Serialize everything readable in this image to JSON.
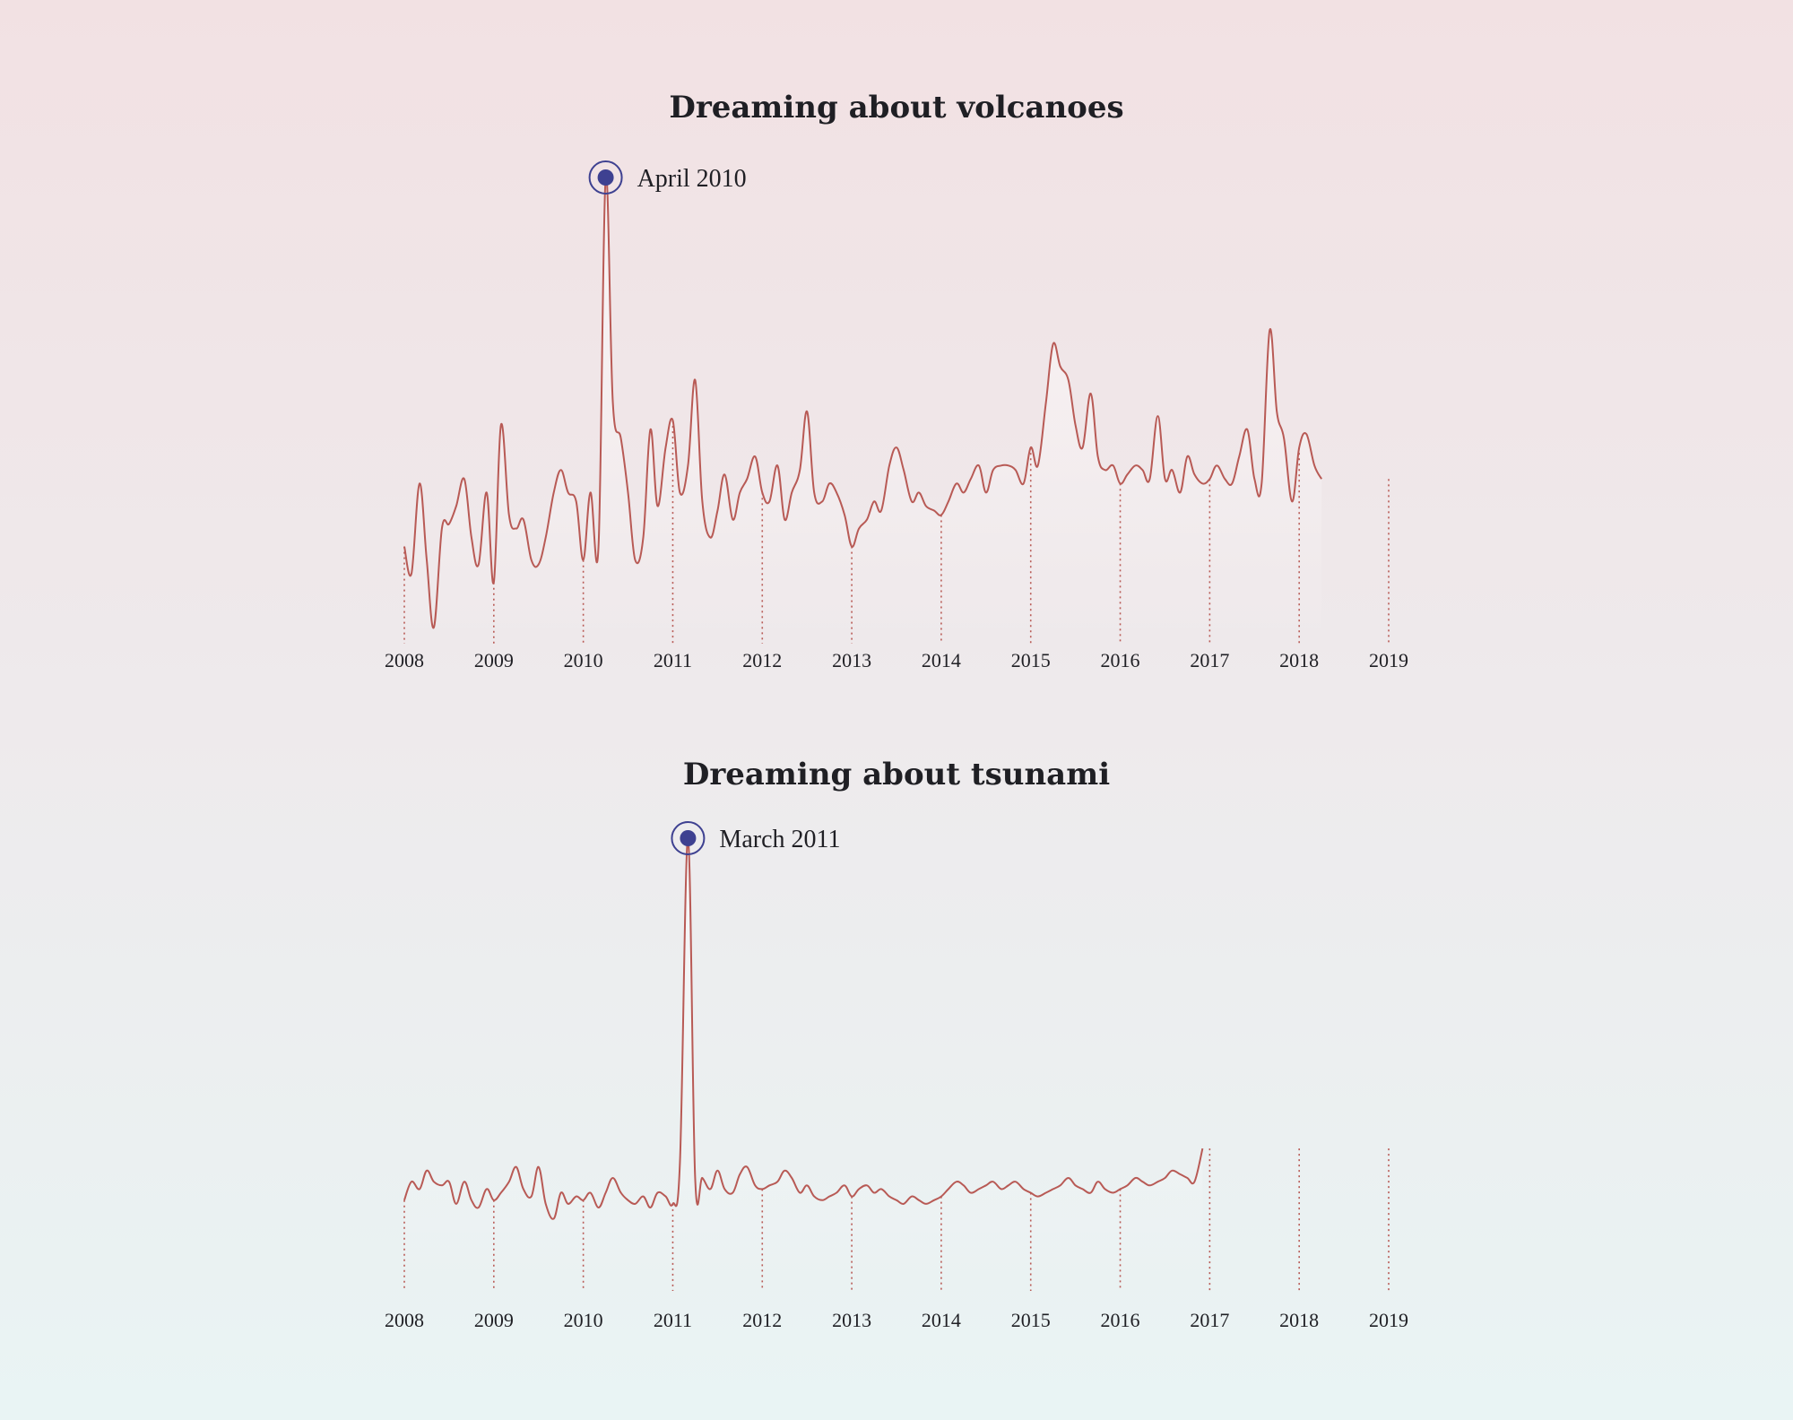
{
  "colors": {
    "line": "#b85a55",
    "tick_line": "#b85a55",
    "marker": "#3e4191",
    "area_top": "#ffffff"
  },
  "chart_data": [
    {
      "type": "line",
      "title": "Dreaming about volcanoes",
      "xlabel": "",
      "ylabel": "",
      "xlim": [
        2008,
        2019
      ],
      "ylim": [
        0,
        100
      ],
      "grid": false,
      "legend": "none",
      "x_ticks": [
        "2008",
        "2009",
        "2010",
        "2011",
        "2012",
        "2013",
        "2014",
        "2015",
        "2016",
        "2017",
        "2018",
        "2019"
      ],
      "annotation": {
        "label": "April 2010",
        "x": 2010.25,
        "y": 100
      },
      "series": [
        {
          "points": [
            [
              2008.0,
              18
            ],
            [
              2008.08,
              12
            ],
            [
              2008.17,
              32
            ],
            [
              2008.25,
              15
            ],
            [
              2008.33,
              0
            ],
            [
              2008.42,
              22
            ],
            [
              2008.5,
              23
            ],
            [
              2008.58,
              27
            ],
            [
              2008.67,
              33
            ],
            [
              2008.75,
              20
            ],
            [
              2008.83,
              14
            ],
            [
              2008.92,
              30
            ],
            [
              2009.0,
              10
            ],
            [
              2009.08,
              45
            ],
            [
              2009.17,
              25
            ],
            [
              2009.25,
              22
            ],
            [
              2009.33,
              24
            ],
            [
              2009.42,
              15
            ],
            [
              2009.5,
              14
            ],
            [
              2009.58,
              20
            ],
            [
              2009.67,
              30
            ],
            [
              2009.75,
              35
            ],
            [
              2009.83,
              30
            ],
            [
              2009.92,
              28
            ],
            [
              2010.0,
              15
            ],
            [
              2010.08,
              30
            ],
            [
              2010.17,
              18
            ],
            [
              2010.25,
              100
            ],
            [
              2010.33,
              50
            ],
            [
              2010.42,
              42
            ],
            [
              2010.5,
              30
            ],
            [
              2010.58,
              15
            ],
            [
              2010.67,
              20
            ],
            [
              2010.75,
              44
            ],
            [
              2010.83,
              27
            ],
            [
              2010.92,
              40
            ],
            [
              2011.0,
              46
            ],
            [
              2011.08,
              30
            ],
            [
              2011.17,
              36
            ],
            [
              2011.25,
              55
            ],
            [
              2011.33,
              28
            ],
            [
              2011.42,
              20
            ],
            [
              2011.5,
              26
            ],
            [
              2011.58,
              34
            ],
            [
              2011.67,
              24
            ],
            [
              2011.75,
              30
            ],
            [
              2011.83,
              33
            ],
            [
              2011.92,
              38
            ],
            [
              2012.0,
              30
            ],
            [
              2012.08,
              28
            ],
            [
              2012.17,
              36
            ],
            [
              2012.25,
              24
            ],
            [
              2012.33,
              30
            ],
            [
              2012.42,
              35
            ],
            [
              2012.5,
              48
            ],
            [
              2012.58,
              30
            ],
            [
              2012.67,
              28
            ],
            [
              2012.75,
              32
            ],
            [
              2012.83,
              30
            ],
            [
              2012.92,
              25
            ],
            [
              2013.0,
              18
            ],
            [
              2013.08,
              22
            ],
            [
              2013.17,
              24
            ],
            [
              2013.25,
              28
            ],
            [
              2013.33,
              26
            ],
            [
              2013.42,
              36
            ],
            [
              2013.5,
              40
            ],
            [
              2013.58,
              35
            ],
            [
              2013.67,
              28
            ],
            [
              2013.75,
              30
            ],
            [
              2013.83,
              27
            ],
            [
              2013.92,
              26
            ],
            [
              2014.0,
              25
            ],
            [
              2014.08,
              28
            ],
            [
              2014.17,
              32
            ],
            [
              2014.25,
              30
            ],
            [
              2014.33,
              33
            ],
            [
              2014.42,
              36
            ],
            [
              2014.5,
              30
            ],
            [
              2014.58,
              35
            ],
            [
              2014.67,
              36
            ],
            [
              2014.75,
              36
            ],
            [
              2014.83,
              35
            ],
            [
              2014.92,
              32
            ],
            [
              2015.0,
              40
            ],
            [
              2015.08,
              36
            ],
            [
              2015.17,
              50
            ],
            [
              2015.25,
              63
            ],
            [
              2015.33,
              58
            ],
            [
              2015.42,
              55
            ],
            [
              2015.5,
              45
            ],
            [
              2015.58,
              40
            ],
            [
              2015.67,
              52
            ],
            [
              2015.75,
              38
            ],
            [
              2015.83,
              35
            ],
            [
              2015.92,
              36
            ],
            [
              2016.0,
              32
            ],
            [
              2016.08,
              34
            ],
            [
              2016.17,
              36
            ],
            [
              2016.25,
              35
            ],
            [
              2016.33,
              33
            ],
            [
              2016.42,
              47
            ],
            [
              2016.5,
              33
            ],
            [
              2016.58,
              35
            ],
            [
              2016.67,
              30
            ],
            [
              2016.75,
              38
            ],
            [
              2016.83,
              34
            ],
            [
              2016.92,
              32
            ],
            [
              2017.0,
              33
            ],
            [
              2017.08,
              36
            ],
            [
              2017.17,
              33
            ],
            [
              2017.25,
              32
            ],
            [
              2017.33,
              38
            ],
            [
              2017.42,
              44
            ],
            [
              2017.5,
              33
            ],
            [
              2017.58,
              32
            ],
            [
              2017.67,
              66
            ],
            [
              2017.75,
              48
            ],
            [
              2017.83,
              42
            ],
            [
              2017.92,
              28
            ],
            [
              2018.0,
              40
            ],
            [
              2018.08,
              43
            ],
            [
              2018.17,
              36
            ],
            [
              2018.25,
              33
            ]
          ]
        }
      ]
    },
    {
      "type": "line",
      "title": "Dreaming about tsunami",
      "xlabel": "",
      "ylabel": "",
      "xlim": [
        2008,
        2019
      ],
      "ylim": [
        0,
        100
      ],
      "grid": false,
      "legend": "none",
      "x_ticks": [
        "2008",
        "2009",
        "2010",
        "2011",
        "2012",
        "2013",
        "2014",
        "2015",
        "2016",
        "2017",
        "2018",
        "2019"
      ],
      "annotation": {
        "label": "March 2011",
        "x": 2011.17,
        "y": 100
      },
      "series": [
        {
          "points": [
            [
              2008.0,
              2
            ],
            [
              2008.08,
              7
            ],
            [
              2008.17,
              5
            ],
            [
              2008.25,
              10
            ],
            [
              2008.33,
              7
            ],
            [
              2008.42,
              6
            ],
            [
              2008.5,
              7
            ],
            [
              2008.58,
              1
            ],
            [
              2008.67,
              7
            ],
            [
              2008.75,
              2
            ],
            [
              2008.83,
              0
            ],
            [
              2008.92,
              5
            ],
            [
              2009.0,
              2
            ],
            [
              2009.08,
              4
            ],
            [
              2009.17,
              7
            ],
            [
              2009.25,
              11
            ],
            [
              2009.33,
              5
            ],
            [
              2009.42,
              3
            ],
            [
              2009.5,
              11
            ],
            [
              2009.58,
              1
            ],
            [
              2009.67,
              -3
            ],
            [
              2009.75,
              4
            ],
            [
              2009.83,
              1
            ],
            [
              2009.92,
              3
            ],
            [
              2010.0,
              2
            ],
            [
              2010.08,
              4
            ],
            [
              2010.17,
              0
            ],
            [
              2010.25,
              4
            ],
            [
              2010.33,
              8
            ],
            [
              2010.42,
              4
            ],
            [
              2010.5,
              2
            ],
            [
              2010.58,
              1
            ],
            [
              2010.67,
              3
            ],
            [
              2010.75,
              0
            ],
            [
              2010.83,
              4
            ],
            [
              2010.92,
              3
            ],
            [
              2011.0,
              1
            ],
            [
              2011.08,
              12
            ],
            [
              2011.17,
              100
            ],
            [
              2011.25,
              8
            ],
            [
              2011.33,
              8
            ],
            [
              2011.42,
              5
            ],
            [
              2011.5,
              10
            ],
            [
              2011.58,
              5
            ],
            [
              2011.67,
              4
            ],
            [
              2011.75,
              9
            ],
            [
              2011.83,
              11
            ],
            [
              2011.92,
              6
            ],
            [
              2012.0,
              5
            ],
            [
              2012.08,
              6
            ],
            [
              2012.17,
              7
            ],
            [
              2012.25,
              10
            ],
            [
              2012.33,
              8
            ],
            [
              2012.42,
              4
            ],
            [
              2012.5,
              6
            ],
            [
              2012.58,
              3
            ],
            [
              2012.67,
              2
            ],
            [
              2012.75,
              3
            ],
            [
              2012.83,
              4
            ],
            [
              2012.92,
              6
            ],
            [
              2013.0,
              3
            ],
            [
              2013.08,
              5
            ],
            [
              2013.17,
              6
            ],
            [
              2013.25,
              4
            ],
            [
              2013.33,
              5
            ],
            [
              2013.42,
              3
            ],
            [
              2013.5,
              2
            ],
            [
              2013.58,
              1
            ],
            [
              2013.67,
              3
            ],
            [
              2013.75,
              2
            ],
            [
              2013.83,
              1
            ],
            [
              2013.92,
              2
            ],
            [
              2014.0,
              3
            ],
            [
              2014.08,
              5
            ],
            [
              2014.17,
              7
            ],
            [
              2014.25,
              6
            ],
            [
              2014.33,
              4
            ],
            [
              2014.42,
              5
            ],
            [
              2014.5,
              6
            ],
            [
              2014.58,
              7
            ],
            [
              2014.67,
              5
            ],
            [
              2014.75,
              6
            ],
            [
              2014.83,
              7
            ],
            [
              2014.92,
              5
            ],
            [
              2015.0,
              4
            ],
            [
              2015.08,
              3
            ],
            [
              2015.17,
              4
            ],
            [
              2015.25,
              5
            ],
            [
              2015.33,
              6
            ],
            [
              2015.42,
              8
            ],
            [
              2015.5,
              6
            ],
            [
              2015.58,
              5
            ],
            [
              2015.67,
              4
            ],
            [
              2015.75,
              7
            ],
            [
              2015.83,
              5
            ],
            [
              2015.92,
              4
            ],
            [
              2016.0,
              5
            ],
            [
              2016.08,
              6
            ],
            [
              2016.17,
              8
            ],
            [
              2016.25,
              7
            ],
            [
              2016.33,
              6
            ],
            [
              2016.42,
              7
            ],
            [
              2016.5,
              8
            ],
            [
              2016.58,
              10
            ],
            [
              2016.67,
              9
            ],
            [
              2016.75,
              8
            ],
            [
              2016.83,
              7
            ],
            [
              2016.92,
              16
            ]
          ]
        }
      ]
    }
  ]
}
